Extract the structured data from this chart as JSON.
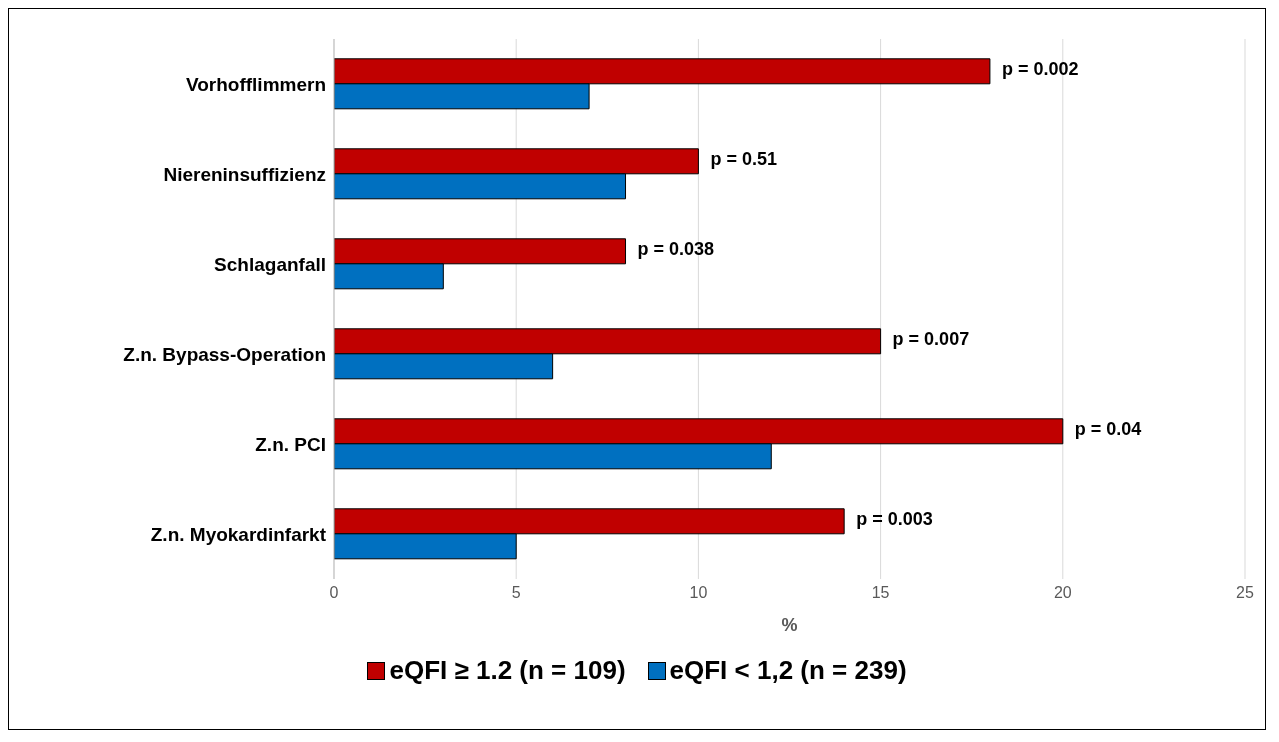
{
  "chart_data": {
    "type": "bar",
    "orientation": "horizontal",
    "xlabel": "%",
    "categories": [
      "Vorhofflimmern",
      "Niereninsuffizienz",
      "Schlaganfall",
      "Z.n. Bypass-Operation",
      "Z.n. PCI",
      "Z.n. Myokardinfarkt"
    ],
    "series": [
      {
        "name": "eQFI ≥ 1.2 (n = 109)",
        "color": "#c00000",
        "values": [
          18,
          10,
          8,
          15,
          20,
          14
        ]
      },
      {
        "name": "eQFI < 1,2 (n = 239)",
        "color": "#0070c0",
        "values": [
          7,
          8,
          3,
          6,
          12,
          5
        ]
      }
    ],
    "xlim": [
      0,
      25
    ],
    "xticks": [
      0,
      5,
      10,
      15,
      20,
      25
    ],
    "grid": "x",
    "legend": "bottom",
    "annotations": [
      {
        "text": "p = 0.002",
        "x": 18,
        "y": "Vorhofflimmern"
      },
      {
        "text": "p = 0.51",
        "x": 10,
        "y": "Niereninsuffizienz"
      },
      {
        "text": "p = 0.038",
        "x": 8,
        "y": "Schlaganfall"
      },
      {
        "text": "p = 0.007",
        "x": 15,
        "y": "Z.n. Bypass-Operation"
      },
      {
        "text": "p = 0.04",
        "x": 20,
        "y": "Z.n. PCI"
      },
      {
        "text": "p = 0.003",
        "x": 14,
        "y": "Z.n. Myokardinfarkt"
      }
    ]
  }
}
